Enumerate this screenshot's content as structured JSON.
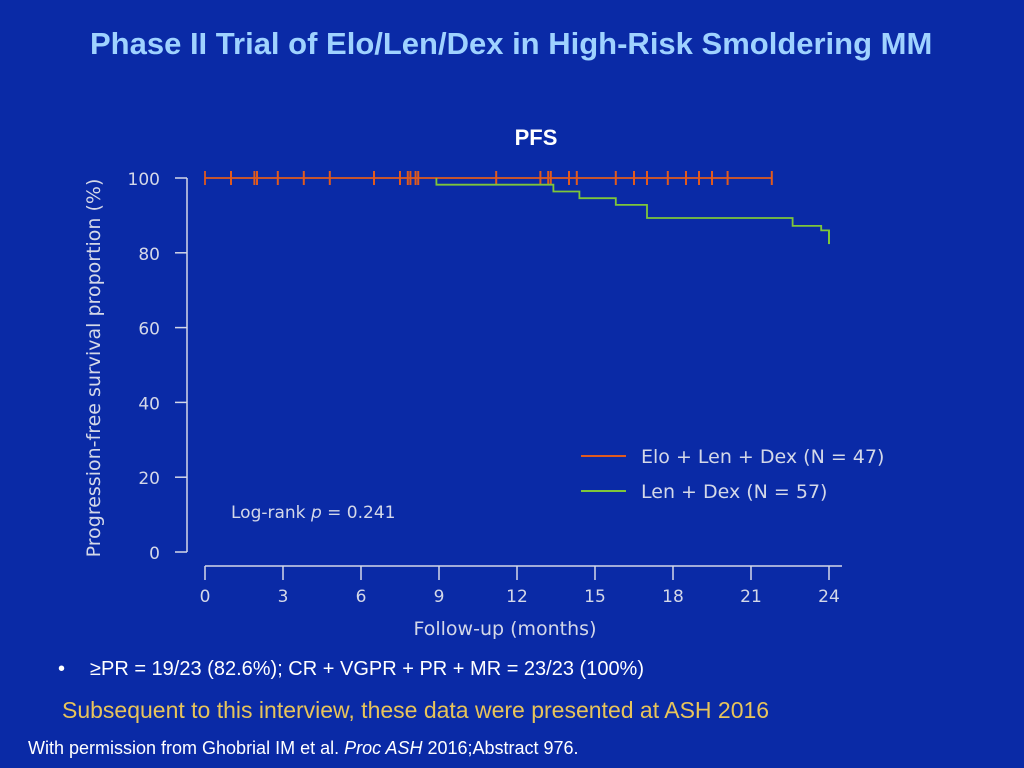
{
  "title": "Phase II Trial of Elo/Len/Dex in High-Risk Smoldering MM",
  "chart_data": {
    "type": "line",
    "subtype": "kaplan-meier",
    "title": "PFS",
    "xlabel": "Follow-up (months)",
    "ylabel": "Progression-free survival proportion (%)",
    "xticks": [
      "0",
      "3",
      "6",
      "9",
      "12",
      "15",
      "18",
      "21",
      "24"
    ],
    "yticks": [
      "0",
      "20",
      "40",
      "60",
      "80",
      "100"
    ],
    "xlim": [
      0,
      24
    ],
    "ylim": [
      0,
      100
    ],
    "legend_position": "right",
    "annotation": {
      "prefix": "Log-rank ",
      "var": "p",
      "suffix": " = 0.241"
    },
    "series": [
      {
        "name": "Elo + Len + Dex (N = 47)",
        "color": "#e05a1e",
        "steps": [
          [
            0,
            100
          ],
          [
            21.8,
            100
          ]
        ],
        "censored": [
          1.0,
          1.9,
          2.0,
          2.8,
          3.8,
          4.8,
          6.5,
          7.5,
          7.8,
          7.9,
          8.1,
          8.2,
          11.2,
          12.9,
          13.2,
          13.3,
          14.0,
          14.3,
          15.8,
          16.5,
          17.0,
          17.8,
          18.5,
          19.0,
          19.5,
          20.1,
          21.8
        ]
      },
      {
        "name": "Len + Dex (N = 57)",
        "color": "#7ec63a",
        "steps": [
          [
            8.9,
            100
          ],
          [
            8.9,
            98.2
          ],
          [
            13.4,
            98.2
          ],
          [
            13.4,
            96.4
          ],
          [
            14.4,
            96.4
          ],
          [
            14.4,
            94.6
          ],
          [
            15.8,
            94.6
          ],
          [
            15.8,
            92.8
          ],
          [
            17.0,
            92.8
          ],
          [
            17.0,
            89.3
          ],
          [
            22.6,
            89.3
          ],
          [
            22.6,
            87.2
          ],
          [
            23.7,
            87.2
          ],
          [
            23.7,
            86.0
          ],
          [
            24.0,
            86.0
          ],
          [
            24.0,
            84.2
          ]
        ],
        "censored": [
          24.0
        ]
      }
    ]
  },
  "bullet": "≥PR = 19/23 (82.6%); CR + VGPR + PR + MR = 23/23 (100%)",
  "note": "Subsequent to this interview, these data were presented at ASH 2016",
  "citation": {
    "prefix": "With permission from Ghobrial IM et al. ",
    "journal": "Proc ASH",
    "suffix": " 2016;Abstract 976."
  }
}
